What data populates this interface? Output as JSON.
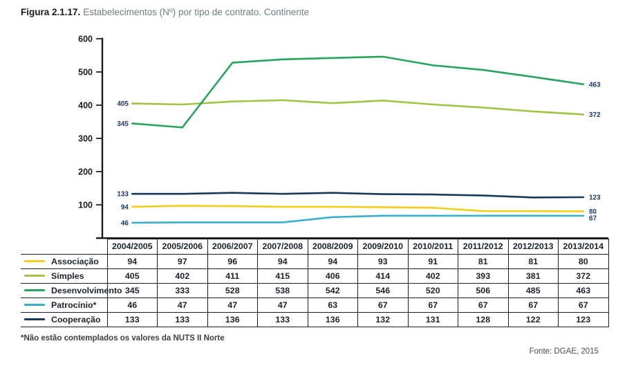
{
  "title": {
    "prefix": "Figura 2.1.17.",
    "text": "Estabelecimentos (Nº) por tipo de contrato. Continente"
  },
  "chart_data": {
    "type": "line",
    "title": "Estabelecimentos (Nº) por tipo de contrato. Continente",
    "categories": [
      "2004/2005",
      "2005/2006",
      "2006/2007",
      "2007/2008",
      "2008/2009",
      "2009/2010",
      "2010/2011",
      "2011/2012",
      "2012/2013",
      "2013/2014"
    ],
    "series": [
      {
        "name": "Associação",
        "color": "#f2ce1b",
        "values": [
          94,
          97,
          96,
          94,
          94,
          93,
          91,
          81,
          81,
          80
        ]
      },
      {
        "name": "Simples",
        "color": "#a0c445",
        "values": [
          405,
          402,
          411,
          415,
          406,
          414,
          402,
          393,
          381,
          372
        ]
      },
      {
        "name": "Desenvolvimento",
        "color": "#27a35c",
        "values": [
          345,
          333,
          528,
          538,
          542,
          546,
          520,
          506,
          485,
          463
        ]
      },
      {
        "name": "Patrocínio*",
        "color": "#3aafc9",
        "values": [
          46,
          47,
          47,
          47,
          63,
          67,
          67,
          67,
          67,
          67
        ]
      },
      {
        "name": "Cooperação",
        "color": "#17375b",
        "values": [
          133,
          133,
          136,
          133,
          136,
          132,
          131,
          128,
          122,
          123
        ]
      }
    ],
    "ylim": [
      0,
      600
    ],
    "yticks": [
      100,
      200,
      300,
      400,
      500,
      600
    ],
    "grid": false,
    "legend_position": "table-left-column",
    "point_labels": "first and last value of each series shown beside line ends",
    "axis_color": "#1a1a1a",
    "label_color": "#1f3864"
  },
  "footnote": "*Não estão contemplados os valores da NUTS II Norte",
  "source": "Fonte: DGAE, 2015"
}
